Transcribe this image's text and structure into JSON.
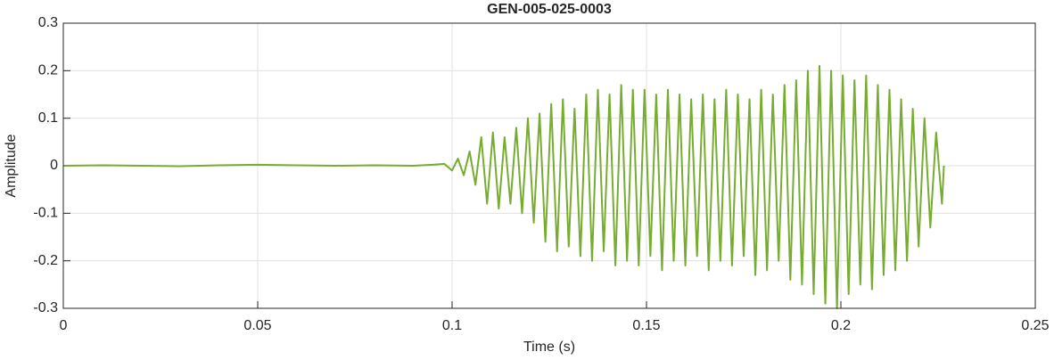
{
  "chart_data": {
    "type": "line",
    "title": "GEN-005-025-0003",
    "x_label": "Time (s)",
    "y_label": "Amplitude",
    "color": "#77ac30",
    "grid": true,
    "xlim": [
      0,
      0.25
    ],
    "xticks": [
      0,
      0.05,
      0.1,
      0.15,
      0.2,
      0.25
    ],
    "ylim": [
      -0.3,
      0.3
    ],
    "yticks": [
      -0.3,
      -0.2,
      -0.1,
      0,
      0.1,
      0.2,
      0.3
    ],
    "x": [
      0,
      0.01,
      0.02,
      0.03,
      0.04,
      0.05,
      0.06,
      0.07,
      0.08,
      0.09,
      0.095,
      0.098,
      0.1,
      0.1015,
      0.103,
      0.1045,
      0.106,
      0.1075,
      0.109,
      0.1105,
      0.112,
      0.1135,
      0.115,
      0.1165,
      0.118,
      0.1195,
      0.121,
      0.1225,
      0.124,
      0.1255,
      0.127,
      0.1285,
      0.13,
      0.1315,
      0.133,
      0.1345,
      0.136,
      0.1375,
      0.139,
      0.1405,
      0.142,
      0.1435,
      0.145,
      0.1465,
      0.148,
      0.1495,
      0.151,
      0.1525,
      0.154,
      0.1555,
      0.157,
      0.1585,
      0.16,
      0.1615,
      0.163,
      0.1645,
      0.166,
      0.1675,
      0.169,
      0.1705,
      0.172,
      0.1735,
      0.175,
      0.1765,
      0.178,
      0.1795,
      0.181,
      0.1825,
      0.184,
      0.1855,
      0.187,
      0.1885,
      0.19,
      0.1915,
      0.193,
      0.1945,
      0.196,
      0.1975,
      0.199,
      0.2005,
      0.202,
      0.2035,
      0.205,
      0.2065,
      0.208,
      0.2095,
      0.211,
      0.2125,
      0.214,
      0.2155,
      0.217,
      0.2185,
      0.22,
      0.2215,
      0.223,
      0.2245,
      0.226,
      0.2265
    ],
    "values": [
      0,
      0.001,
      0,
      -0.001,
      0.001,
      0.002,
      0.001,
      0,
      0.001,
      0,
      0.002,
      0.004,
      -0.01,
      0.015,
      -0.02,
      0.03,
      -0.04,
      0.06,
      -0.08,
      0.07,
      -0.09,
      0.06,
      -0.08,
      0.08,
      -0.1,
      0.1,
      -0.12,
      0.11,
      -0.16,
      0.13,
      -0.18,
      0.14,
      -0.17,
      0.12,
      -0.19,
      0.15,
      -0.2,
      0.16,
      -0.18,
      0.15,
      -0.21,
      0.17,
      -0.2,
      0.16,
      -0.21,
      0.16,
      -0.19,
      0.15,
      -0.22,
      0.16,
      -0.2,
      0.15,
      -0.21,
      0.14,
      -0.19,
      0.15,
      -0.22,
      0.14,
      -0.2,
      0.16,
      -0.21,
      0.15,
      -0.19,
      0.14,
      -0.23,
      0.16,
      -0.22,
      0.15,
      -0.2,
      0.17,
      -0.24,
      0.18,
      -0.25,
      0.2,
      -0.27,
      0.21,
      -0.29,
      0.2,
      -0.3,
      0.19,
      -0.27,
      0.18,
      -0.25,
      0.19,
      -0.26,
      0.17,
      -0.23,
      0.16,
      -0.22,
      0.14,
      -0.2,
      0.12,
      -0.17,
      0.1,
      -0.13,
      0.07,
      -0.08,
      0
    ]
  }
}
